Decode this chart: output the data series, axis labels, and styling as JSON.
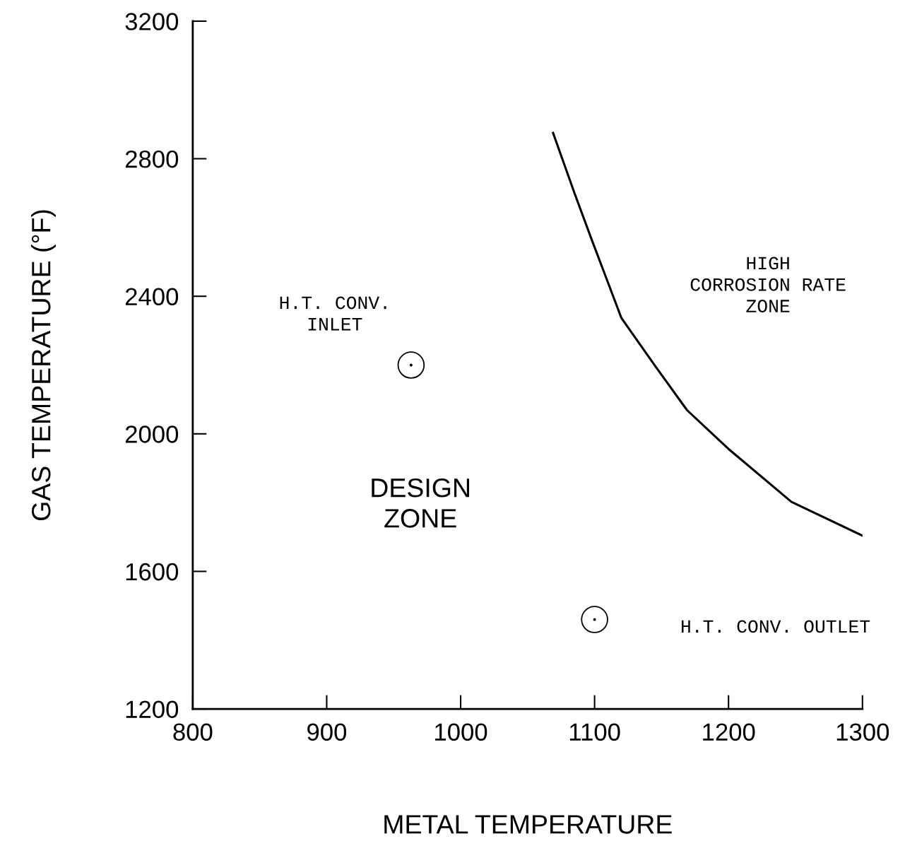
{
  "chart_data": {
    "type": "scatter",
    "xlabel": "METAL TEMPERATURE",
    "ylabel": "GAS TEMPERATURE (°F)",
    "xlim": [
      800,
      1300
    ],
    "xticks": [
      800,
      900,
      1000,
      1100,
      1200,
      1300
    ],
    "ylim": [
      1200,
      3200
    ],
    "yticks": [
      1200,
      1600,
      2000,
      2400,
      2800,
      3200
    ],
    "grid": false,
    "legend": false,
    "series": [
      {
        "color": "#000000",
        "marker": "circle",
        "x": [
          963,
          1100
        ],
        "values": [
          2200,
          1460
        ]
      },
      {
        "type": "line",
        "color": "#000000",
        "marker": "none",
        "line_style": "solid",
        "x": [
          1069,
          1085,
          1098,
          1110,
          1120,
          1146,
          1169,
          1200,
          1247,
          1300
        ],
        "values": [
          2875,
          2700,
          2563,
          2440,
          2337,
          2193,
          2069,
          1956,
          1802,
          1704
        ]
      }
    ],
    "annotations": [
      "H.T. CONV.\nINLET",
      "DESIGN\nZONE",
      "HIGH\nCORROSION RATE\nZONE",
      "H.T. CONV. OUTLET"
    ]
  }
}
